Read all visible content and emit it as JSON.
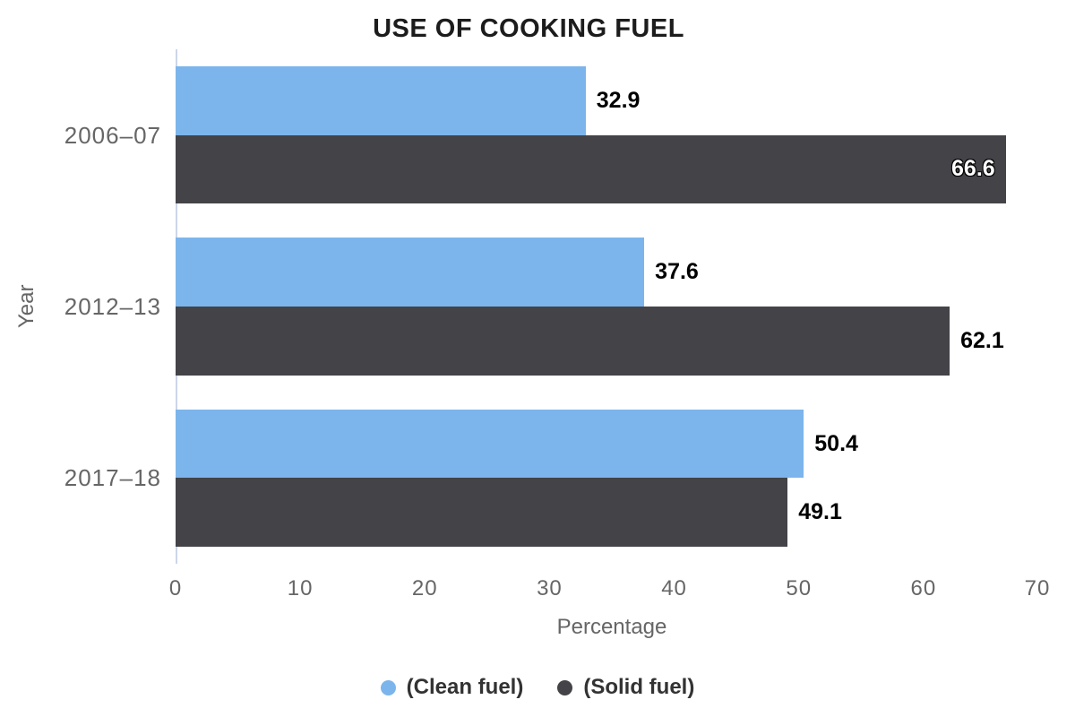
{
  "chart_data": {
    "type": "bar",
    "title": "USE OF COOKING FUEL",
    "categories": [
      "2006–07",
      "2012–13",
      "2017–18"
    ],
    "series": [
      {
        "name": "(Clean fuel)",
        "color": "#7cb5ec",
        "values": [
          32.9,
          37.6,
          50.4
        ]
      },
      {
        "name": "(Solid fuel)",
        "color": "#434348",
        "values": [
          66.6,
          62.1,
          49.1
        ]
      }
    ],
    "xlabel": "Percentage",
    "ylabel": "Year",
    "xlim": [
      0,
      70
    ],
    "xticks": [
      0,
      10,
      20,
      30,
      40,
      50,
      60,
      70
    ],
    "grid": false,
    "legend_position": "bottom-center",
    "colors": {
      "axis_line": "#ccd6eb",
      "tick_label": "#666666",
      "axis_title": "#666666",
      "category_label": "#666666",
      "title_text": "#1c1c1c",
      "legend_text": "#333333",
      "datalabel_outside": "#000000",
      "datalabel_inside": "#ffffff",
      "background": "#ffffff"
    }
  }
}
